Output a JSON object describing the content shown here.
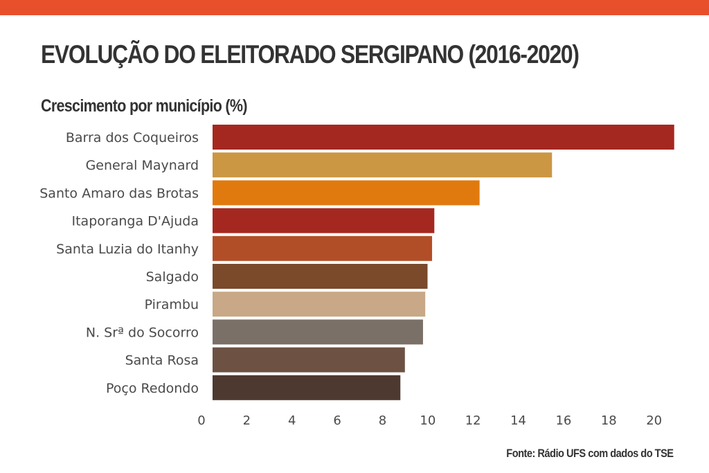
{
  "header": {
    "bar_color": "#E8502C",
    "title": "EVOLUÇÃO DO ELEITORADO SERGIPANO (2016-2020)",
    "subtitle": "Crescimento por município (%)"
  },
  "footer": {
    "source": "Fonte: Rádio UFS com dados do TSE"
  },
  "chart_data": {
    "type": "bar",
    "orientation": "horizontal",
    "title": "EVOLUÇÃO DO ELEITORADO SERGIPANO (2016-2020)",
    "subtitle": "Crescimento por município (%)",
    "categories": [
      "Barra dos Coqueiros",
      "General Maynard",
      "Santo Amaro das Brotas",
      "Itaporanga D'Ajuda",
      "Santa Luzia do Itanhy",
      "Salgado",
      "Pirambu",
      "N. Srª do Socorro",
      "Santa Rosa",
      "Poço Redondo"
    ],
    "values": [
      20.4,
      15.0,
      11.8,
      9.8,
      9.7,
      9.5,
      9.4,
      9.3,
      8.5,
      8.3
    ],
    "colors": [
      "#A52820",
      "#CB9743",
      "#E07A0E",
      "#A52820",
      "#B24E27",
      "#7A4A2A",
      "#C8A886",
      "#7B7068",
      "#6D5244",
      "#4E3930"
    ],
    "xlim": [
      0,
      20.5
    ],
    "xticks": [
      0,
      2,
      4,
      6,
      8,
      10,
      12,
      14,
      16,
      18,
      20
    ],
    "grid": false,
    "legend": "none"
  }
}
